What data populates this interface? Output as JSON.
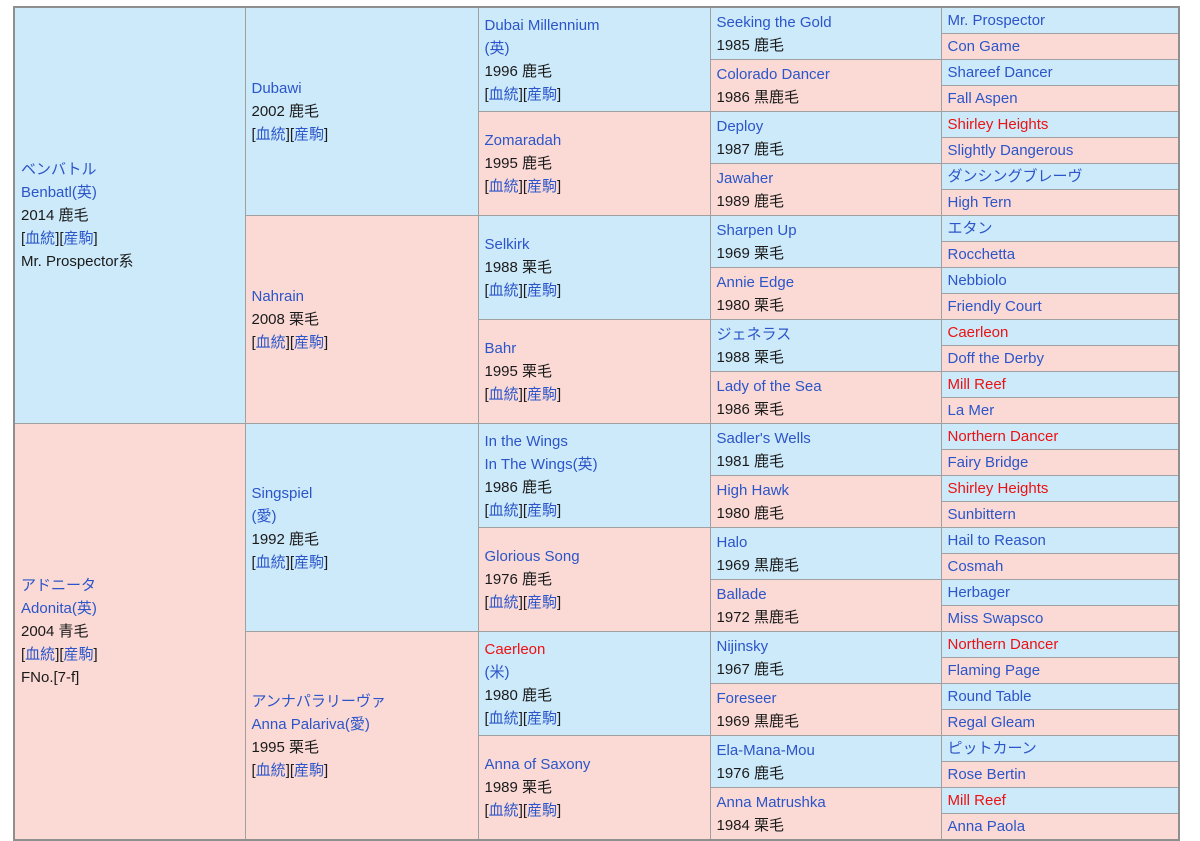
{
  "palette": {
    "male_bg": "#cdeafa",
    "female_bg": "#fbdad6",
    "link_color": "#2b55c8",
    "inbreed_red": "#ee1111",
    "text_color": "#1a1a1a",
    "grid_color": "#a0a0a0",
    "outer_border": "#8f8f8f"
  },
  "labels": {
    "blood": "血統",
    "progeny": "産駒",
    "bracket_open": "[",
    "bracket_close": "]"
  },
  "pedigree": {
    "columns": [
      {
        "generation": "subject-parents",
        "cells": [
          {
            "sex": "m",
            "span": 16,
            "lines": [
              {
                "t": "link",
                "text": "ベンバトル"
              },
              {
                "t": "link",
                "text": "Benbatl(英)"
              },
              {
                "t": "plain",
                "text": "2014 鹿毛"
              },
              {
                "t": "blood"
              },
              {
                "t": "plain",
                "text": "Mr. Prospector系"
              }
            ]
          },
          {
            "sex": "f",
            "span": 16,
            "lines": [
              {
                "t": "link",
                "text": "アドニータ"
              },
              {
                "t": "link",
                "text": "Adonita(英)"
              },
              {
                "t": "plain",
                "text": "2004 青毛"
              },
              {
                "t": "blood"
              },
              {
                "t": "plain",
                "text": "FNo.[7-f]"
              }
            ]
          }
        ]
      },
      {
        "generation": "2",
        "cells": [
          {
            "sex": "m",
            "span": 8,
            "lines": [
              {
                "t": "link",
                "text": "Dubawi"
              },
              {
                "t": "plain",
                "text": "2002 鹿毛"
              },
              {
                "t": "blood"
              }
            ]
          },
          {
            "sex": "f",
            "span": 8,
            "lines": [
              {
                "t": "link",
                "text": "Nahrain"
              },
              {
                "t": "plain",
                "text": "2008 栗毛"
              },
              {
                "t": "blood"
              }
            ]
          },
          {
            "sex": "m",
            "span": 8,
            "lines": [
              {
                "t": "link",
                "text": "Singspiel"
              },
              {
                "t": "link",
                "text": "(愛)"
              },
              {
                "t": "plain",
                "text": "1992 鹿毛"
              },
              {
                "t": "blood"
              }
            ]
          },
          {
            "sex": "f",
            "span": 8,
            "lines": [
              {
                "t": "link",
                "text": "アンナパラリーヴァ"
              },
              {
                "t": "link",
                "text": "Anna Palariva(愛)"
              },
              {
                "t": "plain",
                "text": "1995 栗毛"
              },
              {
                "t": "blood"
              }
            ]
          }
        ]
      },
      {
        "generation": "3",
        "cells": [
          {
            "sex": "m",
            "span": 4,
            "lines": [
              {
                "t": "link",
                "text": "Dubai Millennium"
              },
              {
                "t": "link",
                "text": "(英)"
              },
              {
                "t": "plain",
                "text": "1996 鹿毛"
              },
              {
                "t": "blood"
              }
            ]
          },
          {
            "sex": "f",
            "span": 4,
            "lines": [
              {
                "t": "link",
                "text": "Zomaradah"
              },
              {
                "t": "plain",
                "text": "1995 鹿毛"
              },
              {
                "t": "blood"
              }
            ]
          },
          {
            "sex": "m",
            "span": 4,
            "lines": [
              {
                "t": "link",
                "text": "Selkirk"
              },
              {
                "t": "plain",
                "text": "1988 栗毛"
              },
              {
                "t": "blood"
              }
            ]
          },
          {
            "sex": "f",
            "span": 4,
            "lines": [
              {
                "t": "link",
                "text": "Bahr"
              },
              {
                "t": "plain",
                "text": "1995 栗毛"
              },
              {
                "t": "blood"
              }
            ]
          },
          {
            "sex": "m",
            "span": 4,
            "lines": [
              {
                "t": "link",
                "text": "In the Wings"
              },
              {
                "t": "link",
                "text": "In The Wings(英)"
              },
              {
                "t": "plain",
                "text": "1986 鹿毛"
              },
              {
                "t": "blood"
              }
            ]
          },
          {
            "sex": "f",
            "span": 4,
            "lines": [
              {
                "t": "link",
                "text": "Glorious Song"
              },
              {
                "t": "plain",
                "text": "1976 鹿毛"
              },
              {
                "t": "blood"
              }
            ]
          },
          {
            "sex": "m",
            "span": 4,
            "lines": [
              {
                "t": "red",
                "text": "Caerleon"
              },
              {
                "t": "link",
                "text": "(米)"
              },
              {
                "t": "plain",
                "text": "1980 鹿毛"
              },
              {
                "t": "blood"
              }
            ]
          },
          {
            "sex": "f",
            "span": 4,
            "lines": [
              {
                "t": "link",
                "text": "Anna of Saxony"
              },
              {
                "t": "plain",
                "text": "1989 栗毛"
              },
              {
                "t": "blood"
              }
            ]
          }
        ]
      },
      {
        "generation": "4",
        "cells": [
          {
            "sex": "m",
            "span": 2,
            "lines": [
              {
                "t": "link",
                "text": "Seeking the Gold"
              },
              {
                "t": "plain",
                "text": "1985 鹿毛"
              }
            ]
          },
          {
            "sex": "f",
            "span": 2,
            "lines": [
              {
                "t": "link",
                "text": "Colorado Dancer"
              },
              {
                "t": "plain",
                "text": "1986 黒鹿毛"
              }
            ]
          },
          {
            "sex": "m",
            "span": 2,
            "lines": [
              {
                "t": "link",
                "text": "Deploy"
              },
              {
                "t": "plain",
                "text": "1987 鹿毛"
              }
            ]
          },
          {
            "sex": "f",
            "span": 2,
            "lines": [
              {
                "t": "link",
                "text": "Jawaher"
              },
              {
                "t": "plain",
                "text": "1989 鹿毛"
              }
            ]
          },
          {
            "sex": "m",
            "span": 2,
            "lines": [
              {
                "t": "link",
                "text": "Sharpen Up"
              },
              {
                "t": "plain",
                "text": "1969 栗毛"
              }
            ]
          },
          {
            "sex": "f",
            "span": 2,
            "lines": [
              {
                "t": "link",
                "text": "Annie Edge"
              },
              {
                "t": "plain",
                "text": "1980 栗毛"
              }
            ]
          },
          {
            "sex": "m",
            "span": 2,
            "lines": [
              {
                "t": "link",
                "text": "ジェネラス"
              },
              {
                "t": "plain",
                "text": "1988 栗毛"
              }
            ]
          },
          {
            "sex": "f",
            "span": 2,
            "lines": [
              {
                "t": "link",
                "text": "Lady of the Sea"
              },
              {
                "t": "plain",
                "text": "1986 栗毛"
              }
            ]
          },
          {
            "sex": "m",
            "span": 2,
            "lines": [
              {
                "t": "link",
                "text": "Sadler's Wells"
              },
              {
                "t": "plain",
                "text": "1981 鹿毛"
              }
            ]
          },
          {
            "sex": "f",
            "span": 2,
            "lines": [
              {
                "t": "link",
                "text": "High Hawk"
              },
              {
                "t": "plain",
                "text": "1980 鹿毛"
              }
            ]
          },
          {
            "sex": "m",
            "span": 2,
            "lines": [
              {
                "t": "link",
                "text": "Halo"
              },
              {
                "t": "plain",
                "text": "1969 黒鹿毛"
              }
            ]
          },
          {
            "sex": "f",
            "span": 2,
            "lines": [
              {
                "t": "link",
                "text": "Ballade"
              },
              {
                "t": "plain",
                "text": "1972 黒鹿毛"
              }
            ]
          },
          {
            "sex": "m",
            "span": 2,
            "lines": [
              {
                "t": "link",
                "text": "Nijinsky"
              },
              {
                "t": "plain",
                "text": "1967 鹿毛"
              }
            ]
          },
          {
            "sex": "f",
            "span": 2,
            "lines": [
              {
                "t": "link",
                "text": "Foreseer"
              },
              {
                "t": "plain",
                "text": "1969 黒鹿毛"
              }
            ]
          },
          {
            "sex": "m",
            "span": 2,
            "lines": [
              {
                "t": "link",
                "text": "Ela-Mana-Mou"
              },
              {
                "t": "plain",
                "text": "1976 鹿毛"
              }
            ]
          },
          {
            "sex": "f",
            "span": 2,
            "lines": [
              {
                "t": "link",
                "text": "Anna Matrushka"
              },
              {
                "t": "plain",
                "text": "1984 栗毛"
              }
            ]
          }
        ]
      },
      {
        "generation": "5",
        "cells": [
          {
            "sex": "m",
            "span": 1,
            "lines": [
              {
                "t": "link",
                "text": "Mr. Prospector"
              }
            ]
          },
          {
            "sex": "f",
            "span": 1,
            "lines": [
              {
                "t": "link",
                "text": "Con Game"
              }
            ]
          },
          {
            "sex": "m",
            "span": 1,
            "lines": [
              {
                "t": "link",
                "text": "Shareef Dancer"
              }
            ]
          },
          {
            "sex": "f",
            "span": 1,
            "lines": [
              {
                "t": "link",
                "text": "Fall Aspen"
              }
            ]
          },
          {
            "sex": "m",
            "span": 1,
            "lines": [
              {
                "t": "red",
                "text": "Shirley Heights"
              }
            ]
          },
          {
            "sex": "f",
            "span": 1,
            "lines": [
              {
                "t": "link",
                "text": "Slightly Dangerous"
              }
            ]
          },
          {
            "sex": "m",
            "span": 1,
            "lines": [
              {
                "t": "link",
                "text": "ダンシングブレーヴ"
              }
            ]
          },
          {
            "sex": "f",
            "span": 1,
            "lines": [
              {
                "t": "link",
                "text": "High Tern"
              }
            ]
          },
          {
            "sex": "m",
            "span": 1,
            "lines": [
              {
                "t": "link",
                "text": "エタン"
              }
            ]
          },
          {
            "sex": "f",
            "span": 1,
            "lines": [
              {
                "t": "link",
                "text": "Rocchetta"
              }
            ]
          },
          {
            "sex": "m",
            "span": 1,
            "lines": [
              {
                "t": "link",
                "text": "Nebbiolo"
              }
            ]
          },
          {
            "sex": "f",
            "span": 1,
            "lines": [
              {
                "t": "link",
                "text": "Friendly Court"
              }
            ]
          },
          {
            "sex": "m",
            "span": 1,
            "lines": [
              {
                "t": "red",
                "text": "Caerleon"
              }
            ]
          },
          {
            "sex": "f",
            "span": 1,
            "lines": [
              {
                "t": "link",
                "text": "Doff the Derby"
              }
            ]
          },
          {
            "sex": "m",
            "span": 1,
            "lines": [
              {
                "t": "red",
                "text": "Mill Reef"
              }
            ]
          },
          {
            "sex": "f",
            "span": 1,
            "lines": [
              {
                "t": "link",
                "text": "La Mer"
              }
            ]
          },
          {
            "sex": "m",
            "span": 1,
            "lines": [
              {
                "t": "red",
                "text": "Northern Dancer"
              }
            ]
          },
          {
            "sex": "f",
            "span": 1,
            "lines": [
              {
                "t": "link",
                "text": "Fairy Bridge"
              }
            ]
          },
          {
            "sex": "m",
            "span": 1,
            "lines": [
              {
                "t": "red",
                "text": "Shirley Heights"
              }
            ]
          },
          {
            "sex": "f",
            "span": 1,
            "lines": [
              {
                "t": "link",
                "text": "Sunbittern"
              }
            ]
          },
          {
            "sex": "m",
            "span": 1,
            "lines": [
              {
                "t": "link",
                "text": "Hail to Reason"
              }
            ]
          },
          {
            "sex": "f",
            "span": 1,
            "lines": [
              {
                "t": "link",
                "text": "Cosmah"
              }
            ]
          },
          {
            "sex": "m",
            "span": 1,
            "lines": [
              {
                "t": "link",
                "text": "Herbager"
              }
            ]
          },
          {
            "sex": "f",
            "span": 1,
            "lines": [
              {
                "t": "link",
                "text": "Miss Swapsco"
              }
            ]
          },
          {
            "sex": "m",
            "span": 1,
            "lines": [
              {
                "t": "red",
                "text": "Northern Dancer"
              }
            ]
          },
          {
            "sex": "f",
            "span": 1,
            "lines": [
              {
                "t": "link",
                "text": "Flaming Page"
              }
            ]
          },
          {
            "sex": "m",
            "span": 1,
            "lines": [
              {
                "t": "link",
                "text": "Round Table"
              }
            ]
          },
          {
            "sex": "f",
            "span": 1,
            "lines": [
              {
                "t": "link",
                "text": "Regal Gleam"
              }
            ]
          },
          {
            "sex": "m",
            "span": 1,
            "lines": [
              {
                "t": "link",
                "text": "ピットカーン"
              }
            ]
          },
          {
            "sex": "f",
            "span": 1,
            "lines": [
              {
                "t": "link",
                "text": "Rose Bertin"
              }
            ]
          },
          {
            "sex": "m",
            "span": 1,
            "lines": [
              {
                "t": "red",
                "text": "Mill Reef"
              }
            ]
          },
          {
            "sex": "f",
            "span": 1,
            "lines": [
              {
                "t": "link",
                "text": "Anna Paola"
              }
            ]
          }
        ]
      }
    ]
  }
}
